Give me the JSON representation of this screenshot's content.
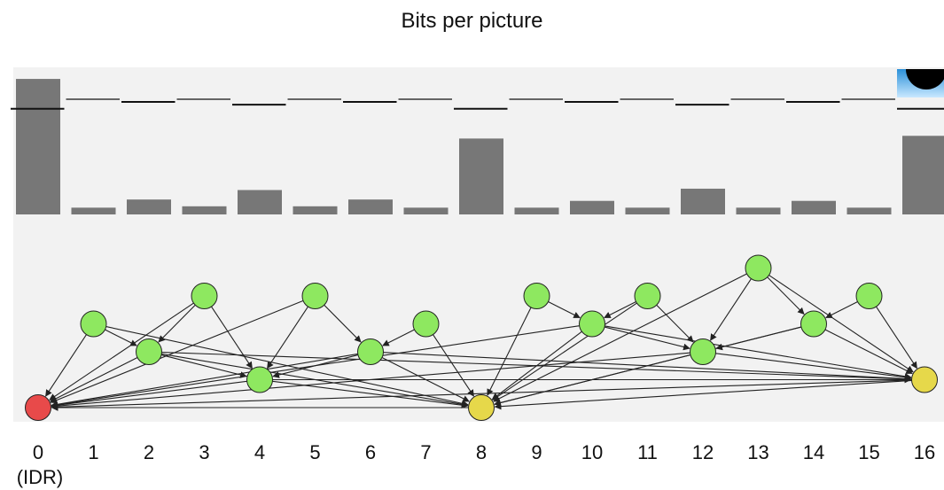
{
  "chart_data": {
    "type": "bar",
    "title": "Bits per picture",
    "categories": [
      "0",
      "1",
      "2",
      "3",
      "4",
      "5",
      "6",
      "7",
      "8",
      "9",
      "10",
      "11",
      "12",
      "13",
      "14",
      "15",
      "16"
    ],
    "idr_label": "(IDR)",
    "values": [
      1.0,
      0.05,
      0.11,
      0.06,
      0.18,
      0.06,
      0.11,
      0.05,
      0.56,
      0.05,
      0.1,
      0.05,
      0.19,
      0.05,
      0.1,
      0.05,
      0.58
    ],
    "buffer_level": [
      0.78,
      0.85,
      0.83,
      0.85,
      0.81,
      0.85,
      0.83,
      0.85,
      0.78,
      0.85,
      0.83,
      0.85,
      0.81,
      0.85,
      0.83,
      0.85,
      0.78
    ],
    "ylim": [
      0,
      1.02
    ],
    "xlabel": "",
    "ylabel": "",
    "grid": false,
    "colors": {
      "bar": "#777777",
      "panel": "#f2f2f2",
      "idr_node": "#e84a4a",
      "p_node": "#e6d84a",
      "b_node": "#8ee860",
      "edge": "#222222"
    },
    "graph": {
      "nodes": [
        {
          "id": "0",
          "level": 0,
          "kind": "idr"
        },
        {
          "id": "1",
          "level": 3,
          "kind": "b"
        },
        {
          "id": "2",
          "level": 2,
          "kind": "b"
        },
        {
          "id": "3",
          "level": 4,
          "kind": "b"
        },
        {
          "id": "4",
          "level": 1,
          "kind": "b"
        },
        {
          "id": "5",
          "level": 4,
          "kind": "b"
        },
        {
          "id": "6",
          "level": 2,
          "kind": "b"
        },
        {
          "id": "7",
          "level": 3,
          "kind": "b"
        },
        {
          "id": "8",
          "level": 0,
          "kind": "p"
        },
        {
          "id": "9",
          "level": 4,
          "kind": "b"
        },
        {
          "id": "10",
          "level": 3,
          "kind": "b"
        },
        {
          "id": "11",
          "level": 4,
          "kind": "b"
        },
        {
          "id": "12",
          "level": 2,
          "kind": "b"
        },
        {
          "id": "13",
          "level": 5,
          "kind": "b"
        },
        {
          "id": "14",
          "level": 3,
          "kind": "b"
        },
        {
          "id": "15",
          "level": 4,
          "kind": "b"
        },
        {
          "id": "16",
          "level": 1,
          "kind": "p"
        }
      ],
      "edges": [
        [
          "8",
          "0"
        ],
        [
          "16",
          "0"
        ],
        [
          "16",
          "8"
        ],
        [
          "1",
          "0"
        ],
        [
          "1",
          "2"
        ],
        [
          "1",
          "8"
        ],
        [
          "2",
          "0"
        ],
        [
          "2",
          "4"
        ],
        [
          "2",
          "8"
        ],
        [
          "2",
          "16"
        ],
        [
          "3",
          "2"
        ],
        [
          "3",
          "4"
        ],
        [
          "3",
          "0"
        ],
        [
          "4",
          "0"
        ],
        [
          "4",
          "8"
        ],
        [
          "4",
          "16"
        ],
        [
          "5",
          "4"
        ],
        [
          "5",
          "6"
        ],
        [
          "5",
          "0"
        ],
        [
          "6",
          "4"
        ],
        [
          "6",
          "8"
        ],
        [
          "6",
          "16"
        ],
        [
          "6",
          "0"
        ],
        [
          "7",
          "6"
        ],
        [
          "7",
          "8"
        ],
        [
          "9",
          "8"
        ],
        [
          "9",
          "10"
        ],
        [
          "10",
          "8"
        ],
        [
          "10",
          "12"
        ],
        [
          "10",
          "16"
        ],
        [
          "10",
          "0"
        ],
        [
          "11",
          "10"
        ],
        [
          "11",
          "12"
        ],
        [
          "11",
          "8"
        ],
        [
          "12",
          "8"
        ],
        [
          "12",
          "16"
        ],
        [
          "12",
          "0"
        ],
        [
          "13",
          "12"
        ],
        [
          "13",
          "14"
        ],
        [
          "13",
          "8"
        ],
        [
          "13",
          "16"
        ],
        [
          "14",
          "12"
        ],
        [
          "14",
          "16"
        ],
        [
          "14",
          "8"
        ],
        [
          "15",
          "14"
        ],
        [
          "15",
          "16"
        ]
      ]
    }
  }
}
